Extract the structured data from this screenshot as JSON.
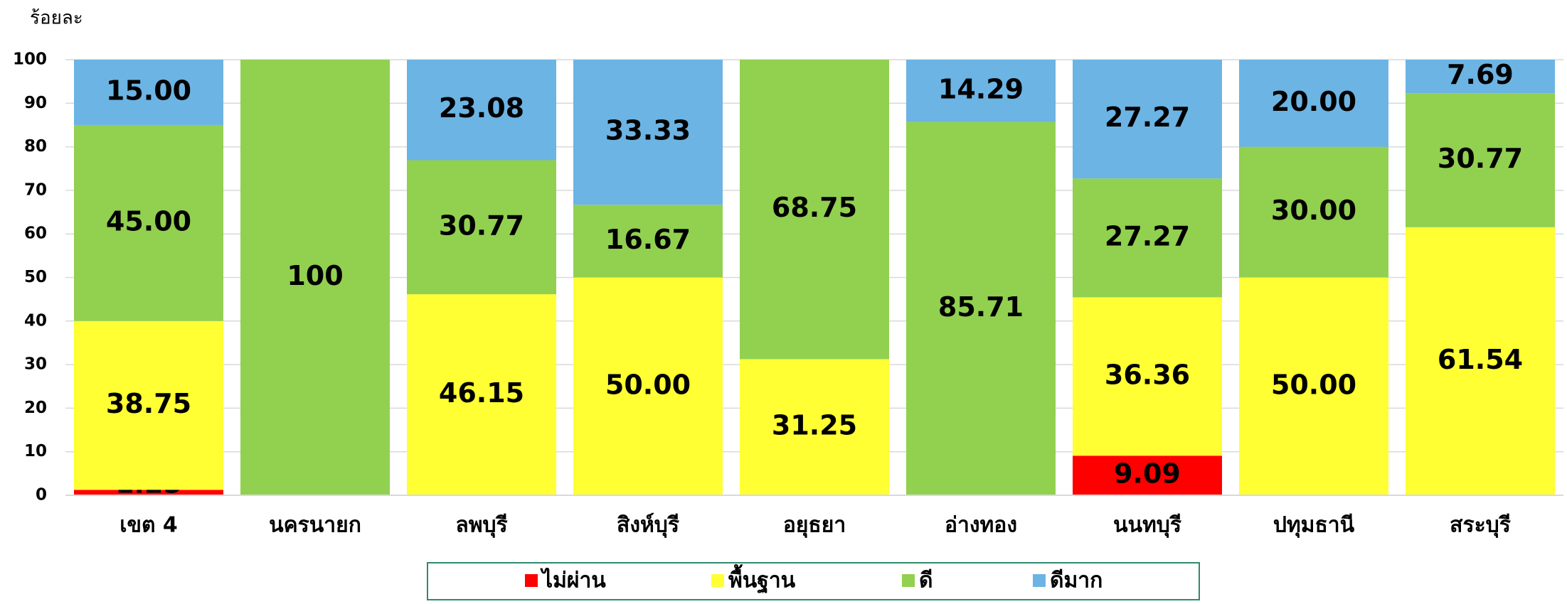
{
  "chart_data": {
    "type": "stacked_bar",
    "y_label": "ร้อยละ",
    "categories": [
      "เขต 4",
      "นครนายก",
      "ลพบุรี",
      "สิงห์บุรี",
      "อยุธยา",
      "อ่างทอง",
      "นนทบุรี",
      "ปทุมธานี",
      "สระบุรี"
    ],
    "series": [
      {
        "name": "ไม่ผ่าน",
        "color": "#ff0000",
        "values": [
          1.25,
          null,
          null,
          null,
          null,
          null,
          9.09,
          null,
          null
        ],
        "value_labels": [
          "1.25",
          null,
          null,
          null,
          null,
          null,
          "9.09",
          null,
          null
        ]
      },
      {
        "name": "พื้นฐาน",
        "color": "#ffff33",
        "values": [
          38.75,
          null,
          46.15,
          50,
          31.25,
          null,
          36.36,
          50,
          61.54
        ],
        "value_labels": [
          "38.75",
          null,
          "46.15",
          "50.00",
          "31.25",
          null,
          "36.36",
          "50.00",
          "61.54"
        ]
      },
      {
        "name": "ดี",
        "color": "#92d050",
        "values": [
          45,
          100,
          30.77,
          16.67,
          68.75,
          85.71,
          27.27,
          30,
          30.77
        ],
        "value_labels": [
          "45.00",
          "100",
          "30.77",
          "16.67",
          "68.75",
          "85.71",
          "27.27",
          "30.00",
          "30.77"
        ]
      },
      {
        "name": "ดีมาก",
        "color": "#6cb4e4",
        "values": [
          15,
          null,
          23.08,
          33.33,
          null,
          14.29,
          27.27,
          20,
          7.69
        ],
        "value_labels": [
          "15.00",
          null,
          "23.08",
          "33.33",
          null,
          "14.29",
          "27.27",
          "20.00",
          "7.69"
        ]
      }
    ],
    "ylim": [
      0,
      100
    ],
    "yticks": [
      0,
      10,
      20,
      30,
      40,
      50,
      60,
      70,
      80,
      90,
      100
    ],
    "grid": true,
    "legend": "bottom"
  }
}
